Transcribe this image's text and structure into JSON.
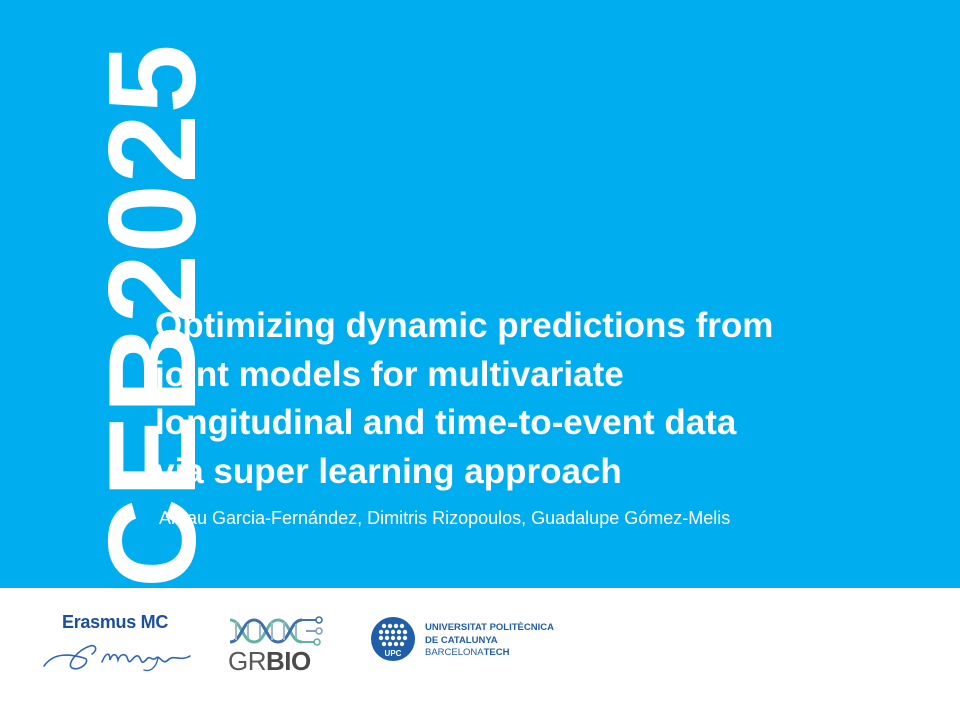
{
  "banner": {
    "text": "CEB2025"
  },
  "title": {
    "line1": "Optimizing dynamic predictions from",
    "line2": "joint models for multivariate",
    "line3": "longitudinal and time-to-event data",
    "line4": "via super learning approach"
  },
  "authors": "Arnau Garcia-Fernández, Dimitris Rizopoulos, Guadalupe Gómez-Melis",
  "logos": {
    "erasmus": {
      "name": "Erasmus MC",
      "signature": "Erasmus"
    },
    "grbio": {
      "gr": "GR",
      "bio": "BIO"
    },
    "upc": {
      "mark": "UPC",
      "line1": "UNIVERSITAT POLITÈCNICA",
      "line2": "DE CATALUNYA",
      "line3_light": "BARCELONA",
      "line3_bold": "TECH"
    }
  },
  "colors": {
    "background_top": "#00aeef",
    "text_on_blue": "#ffffff",
    "erasmus_blue": "#1c4f9c",
    "upc_blue": "#1f5ea8",
    "grbio_teal": "#5fb3a3",
    "grbio_blue": "#3e6fb0"
  }
}
